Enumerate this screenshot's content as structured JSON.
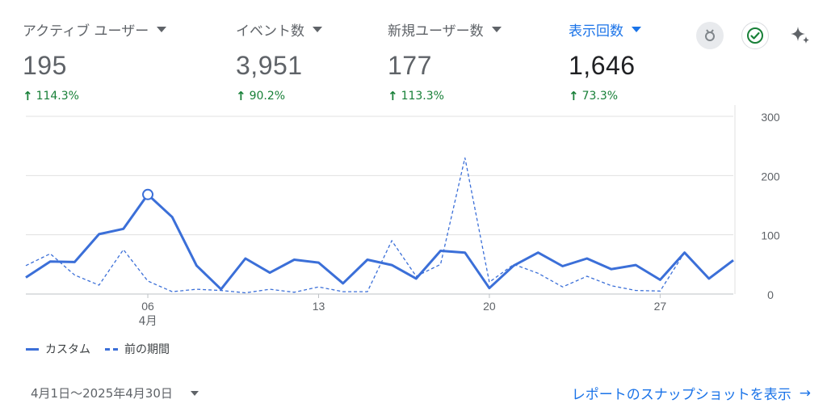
{
  "metrics": [
    {
      "label": "アクティブ ユーザー",
      "value": "195",
      "change": "114.3%"
    },
    {
      "label": "イベント数",
      "value": "3,951",
      "change": "90.2%"
    },
    {
      "label": "新規ユーザー数",
      "value": "177",
      "change": "113.3%"
    },
    {
      "label": "表示回数",
      "value": "1,646",
      "change": "73.3%",
      "selected": true
    }
  ],
  "icons": {
    "badge": "award-badge-icon",
    "check": "check-circle-icon",
    "sparkle": "sparkle-icon"
  },
  "colors": {
    "accent": "#1a73e8",
    "series": "#3b6fd8",
    "positive": "#188038",
    "grid": "#e0e0e0"
  },
  "chart_data": {
    "type": "line",
    "x": [
      1,
      2,
      3,
      4,
      5,
      6,
      7,
      8,
      9,
      10,
      11,
      12,
      13,
      14,
      15,
      16,
      17,
      18,
      19,
      20,
      21,
      22,
      23,
      24,
      25,
      26,
      27,
      28,
      29,
      30
    ],
    "x_tick_labels": [
      {
        "day": 6,
        "label": "06",
        "sublabel": "4月"
      },
      {
        "day": 13,
        "label": "13"
      },
      {
        "day": 20,
        "label": "20"
      },
      {
        "day": 27,
        "label": "27"
      }
    ],
    "y_ticks": [
      0,
      100,
      200,
      300
    ],
    "ylim": [
      0,
      300
    ],
    "grid": true,
    "y_axis_position": "right",
    "legend_position": "bottom-left",
    "series": [
      {
        "name": "カスタム",
        "style": "solid",
        "values": [
          28,
          55,
          54,
          101,
          110,
          168,
          130,
          48,
          8,
          60,
          36,
          58,
          53,
          18,
          58,
          49,
          26,
          73,
          70,
          10,
          48,
          70,
          47,
          60,
          42,
          49,
          24,
          70,
          26,
          57
        ],
        "highlight_index": 5
      },
      {
        "name": "前の期間",
        "style": "dashed",
        "values": [
          48,
          68,
          32,
          15,
          75,
          22,
          4,
          8,
          6,
          2,
          8,
          3,
          12,
          4,
          4,
          90,
          30,
          50,
          230,
          20,
          50,
          35,
          12,
          30,
          14,
          6,
          5,
          70,
          0,
          0
        ],
        "length": 28
      }
    ]
  },
  "legend": {
    "current": "カスタム",
    "previous": "前の期間"
  },
  "footer": {
    "date_range": "4月1日〜2025年4月30日",
    "snapshot_link": "レポートのスナップショットを表示",
    "arrow": "→"
  }
}
